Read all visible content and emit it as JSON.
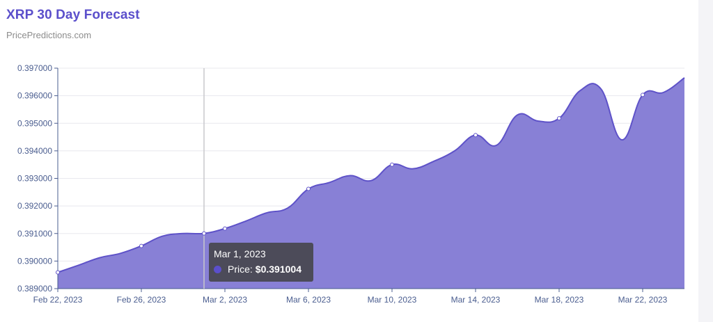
{
  "header": {
    "title": "XRP 30 Day Forecast",
    "subtitle": "PricePredictions.com"
  },
  "tooltip": {
    "date": "Mar 1, 2023",
    "label": "Price:",
    "value": "$0.391004"
  },
  "colors": {
    "accent": "#5b4fcb",
    "area_fill": "#8880d6",
    "line": "#5e52c8"
  },
  "chart_data": {
    "type": "area",
    "title": "XRP 30 Day Forecast",
    "xlabel": "",
    "ylabel": "",
    "ylim": [
      0.389,
      0.397
    ],
    "y_ticks": [
      "0.397000",
      "0.396000",
      "0.395000",
      "0.394000",
      "0.393000",
      "0.392000",
      "0.391000",
      "0.390000",
      "0.389000"
    ],
    "x_ticks": [
      "Feb 22, 2023",
      "Feb 26, 2023",
      "Mar 2, 2023",
      "Mar 6, 2023",
      "Mar 10, 2023",
      "Mar 14, 2023",
      "Mar 18, 2023",
      "Mar 22, 2023"
    ],
    "grid": true,
    "crosshair_x": "Mar 1, 2023",
    "series": [
      {
        "name": "Price",
        "x": [
          "Feb 22, 2023",
          "Feb 23, 2023",
          "Feb 24, 2023",
          "Feb 25, 2023",
          "Feb 26, 2023",
          "Feb 27, 2023",
          "Feb 28, 2023",
          "Mar 1, 2023",
          "Mar 2, 2023",
          "Mar 3, 2023",
          "Mar 4, 2023",
          "Mar 5, 2023",
          "Mar 6, 2023",
          "Mar 7, 2023",
          "Mar 8, 2023",
          "Mar 9, 2023",
          "Mar 10, 2023",
          "Mar 11, 2023",
          "Mar 12, 2023",
          "Mar 13, 2023",
          "Mar 14, 2023",
          "Mar 15, 2023",
          "Mar 16, 2023",
          "Mar 17, 2023",
          "Mar 18, 2023",
          "Mar 19, 2023",
          "Mar 20, 2023",
          "Mar 21, 2023",
          "Mar 22, 2023",
          "Mar 23, 2023",
          "Mar 24, 2023"
        ],
        "values": [
          0.38959,
          0.38985,
          0.39012,
          0.39028,
          0.39055,
          0.3909,
          0.391,
          0.391004,
          0.39118,
          0.39145,
          0.39175,
          0.39192,
          0.39262,
          0.39285,
          0.3931,
          0.39292,
          0.3935,
          0.39335,
          0.39362,
          0.394,
          0.39457,
          0.3942,
          0.3953,
          0.39508,
          0.39518,
          0.39618,
          0.39625,
          0.3944,
          0.39603,
          0.39612,
          0.39665
        ],
        "marked_points": [
          "Feb 22, 2023",
          "Feb 26, 2023",
          "Mar 1, 2023",
          "Mar 2, 2023",
          "Mar 6, 2023",
          "Mar 10, 2023",
          "Mar 14, 2023",
          "Mar 18, 2023",
          "Mar 22, 2023"
        ]
      }
    ]
  }
}
